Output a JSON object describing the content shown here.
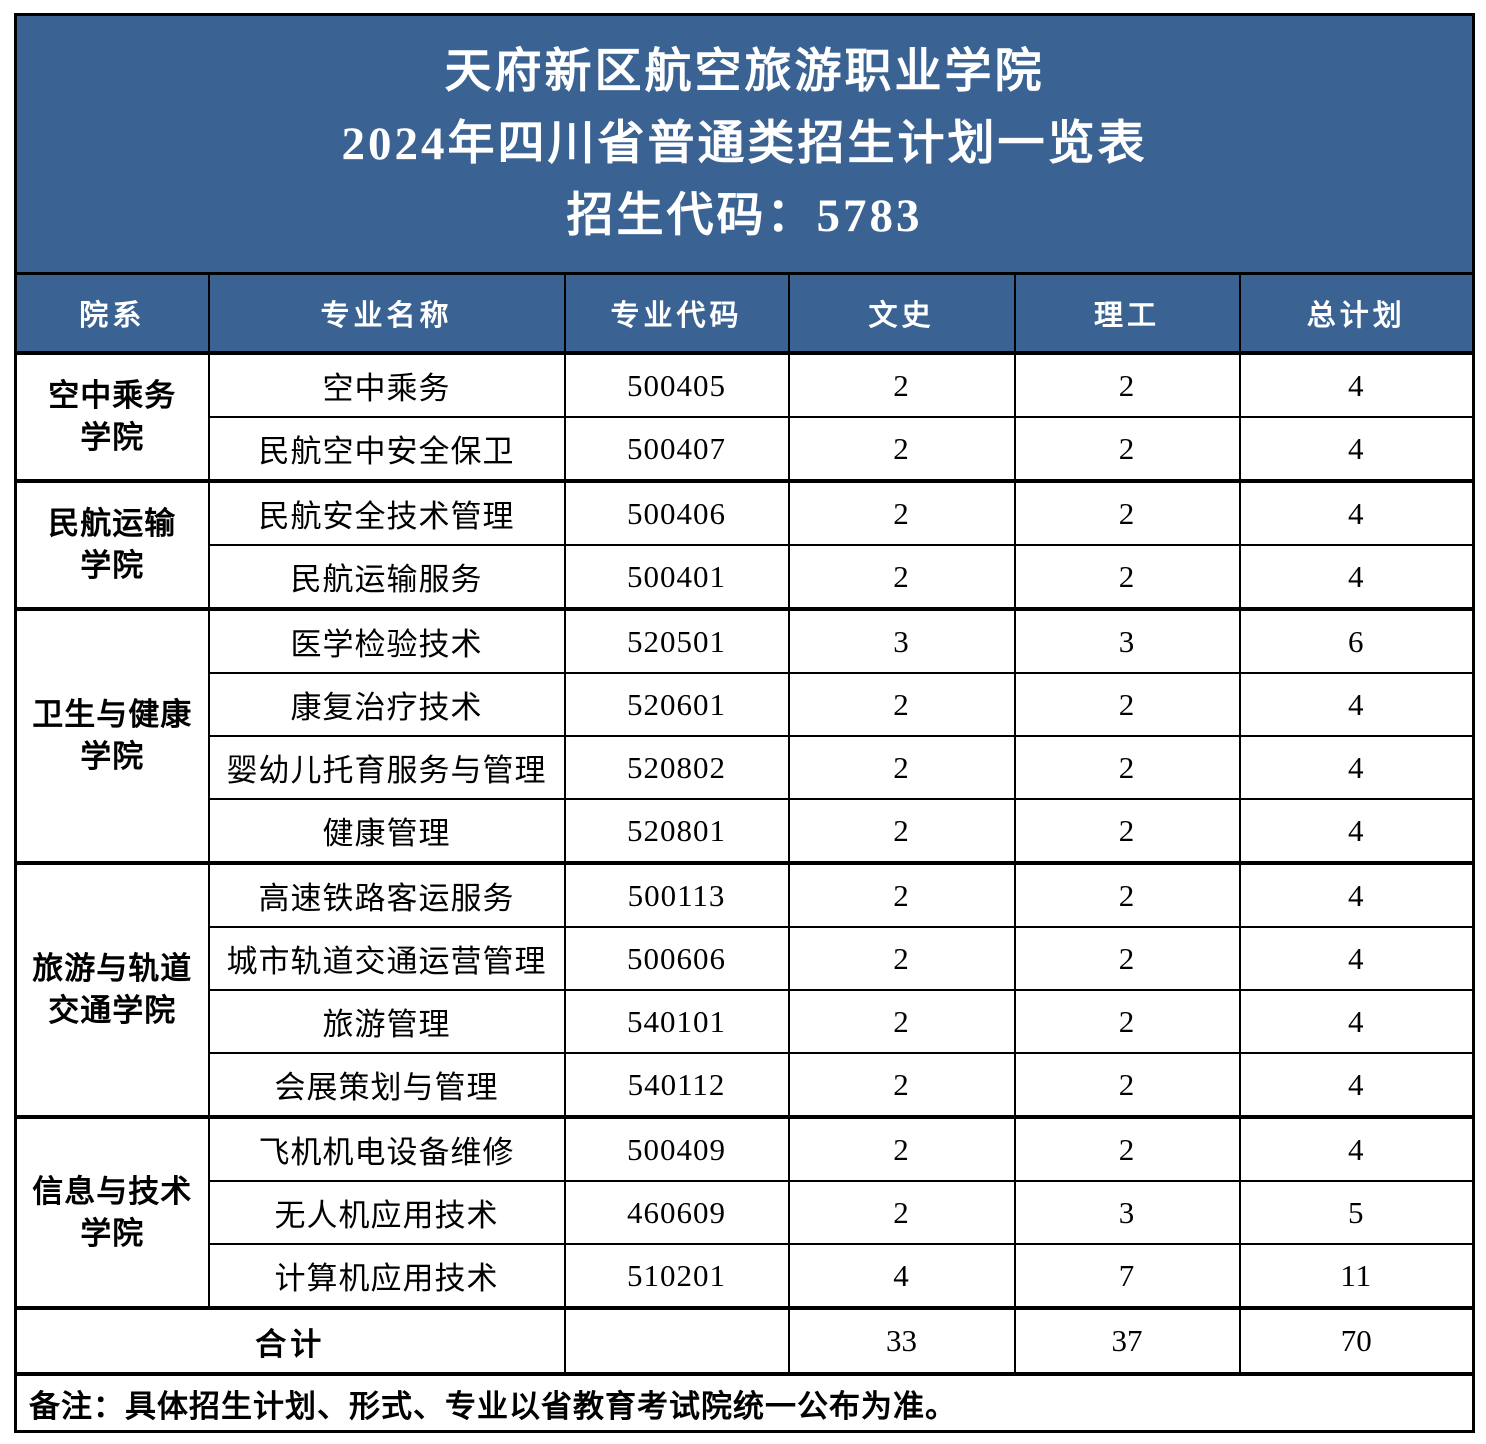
{
  "title": {
    "line1": "天府新区航空旅游职业学院",
    "line2": "2024年四川省普通类招生计划一览表",
    "line3": "招生代码：5783"
  },
  "table": {
    "columns": [
      "院系",
      "专业名称",
      "专业代码",
      "文史",
      "理工",
      "总计划"
    ],
    "groups": [
      {
        "college": "空中乘务\n学院",
        "majors": [
          [
            "空中乘务",
            "500405",
            "2",
            "2",
            "4"
          ],
          [
            "民航空中安全保卫",
            "500407",
            "2",
            "2",
            "4"
          ]
        ]
      },
      {
        "college": "民航运输\n学院",
        "majors": [
          [
            "民航安全技术管理",
            "500406",
            "2",
            "2",
            "4"
          ],
          [
            "民航运输服务",
            "500401",
            "2",
            "2",
            "4"
          ]
        ]
      },
      {
        "college": "卫生与健康\n学院",
        "majors": [
          [
            "医学检验技术",
            "520501",
            "3",
            "3",
            "6"
          ],
          [
            "康复治疗技术",
            "520601",
            "2",
            "2",
            "4"
          ],
          [
            "婴幼儿托育服务与管理",
            "520802",
            "2",
            "2",
            "4"
          ],
          [
            "健康管理",
            "520801",
            "2",
            "2",
            "4"
          ]
        ]
      },
      {
        "college": "旅游与轨道\n交通学院",
        "majors": [
          [
            "高速铁路客运服务",
            "500113",
            "2",
            "2",
            "4"
          ],
          [
            "城市轨道交通运营管理",
            "500606",
            "2",
            "2",
            "4"
          ],
          [
            "旅游管理",
            "540101",
            "2",
            "2",
            "4"
          ],
          [
            "会展策划与管理",
            "540112",
            "2",
            "2",
            "4"
          ]
        ]
      },
      {
        "college": "信息与技术\n学院",
        "majors": [
          [
            "飞机机电设备维修",
            "500409",
            "2",
            "2",
            "4"
          ],
          [
            "无人机应用技术",
            "460609",
            "2",
            "3",
            "5"
          ],
          [
            "计算机应用技术",
            "510201",
            "4",
            "7",
            "11"
          ]
        ]
      }
    ],
    "total": {
      "label": "合计",
      "wenshi": "33",
      "ligong": "37",
      "overall": "70"
    },
    "note": "备注：具体招生计划、形式、专业以省教育考试院统一公布为准。"
  },
  "colors": {
    "header_blue": "#3A6292",
    "border_black": "#000000",
    "light_divider": "#D9D9D9",
    "title_text": "#FFFFFF",
    "body_text": "#000000"
  }
}
